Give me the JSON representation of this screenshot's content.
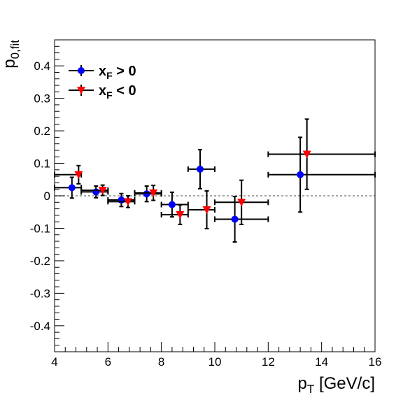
{
  "chart_data": {
    "type": "scatter",
    "title": "",
    "xlabel": "p",
    "xlabel_sub": "T",
    "xlabel_unit": " [GeV/c]",
    "ylabel": "p",
    "ylabel_sub": "0,fit",
    "xlim": [
      4,
      16
    ],
    "ylim": [
      -0.48,
      0.48
    ],
    "x_ticks": [
      4,
      6,
      8,
      10,
      12,
      14,
      16
    ],
    "x_tick_labels": [
      "4",
      "6",
      "8",
      "10",
      "12",
      "14",
      "16"
    ],
    "y_ticks": [
      0.4,
      0.3,
      0.2,
      0.1,
      0,
      -0.1,
      -0.2,
      -0.3,
      -0.4
    ],
    "y_tick_labels": [
      "0.4",
      "0.3",
      "0.2",
      "0.1",
      "0",
      "-0.1",
      "-0.2",
      "-0.3",
      "-0.4"
    ],
    "zero_line": true,
    "grid": false,
    "legend_position": "top-left",
    "series": [
      {
        "name": "x",
        "name_sub": "F",
        "name_suffix": " > 0",
        "marker": "circle",
        "color": "#0000ff",
        "points": [
          {
            "x": 4.65,
            "y": 0.025,
            "xerr": [
              0.65,
              0.35
            ],
            "yerr": 0.032
          },
          {
            "x": 5.55,
            "y": 0.012,
            "xerr": [
              0.55,
              0.45
            ],
            "yerr": 0.018
          },
          {
            "x": 6.5,
            "y": -0.013,
            "xerr": [
              0.5,
              0.5
            ],
            "yerr": 0.02
          },
          {
            "x": 7.45,
            "y": 0.006,
            "xerr": [
              0.45,
              0.55
            ],
            "yerr": 0.024
          },
          {
            "x": 8.4,
            "y": -0.027,
            "xerr": [
              0.4,
              0.6
            ],
            "yerr": 0.038
          },
          {
            "x": 9.45,
            "y": 0.082,
            "xerr": [
              0.45,
              0.55
            ],
            "yerr": 0.06
          },
          {
            "x": 10.75,
            "y": -0.072,
            "xerr": [
              0.75,
              1.25
            ],
            "yerr": 0.07
          },
          {
            "x": 13.2,
            "y": 0.065,
            "xerr": [
              1.2,
              2.8
            ],
            "yerr": 0.115
          }
        ]
      },
      {
        "name": "x",
        "name_sub": "F",
        "name_suffix": " < 0",
        "marker": "triangle-down",
        "color": "#ff0000",
        "points": [
          {
            "x": 4.9,
            "y": 0.065,
            "xerr": [
              0.9,
              0.1
            ],
            "yerr": 0.028
          },
          {
            "x": 5.8,
            "y": 0.017,
            "xerr": [
              0.8,
              0.2
            ],
            "yerr": 0.016
          },
          {
            "x": 6.75,
            "y": -0.018,
            "xerr": [
              0.75,
              0.25
            ],
            "yerr": 0.018
          },
          {
            "x": 7.7,
            "y": 0.009,
            "xerr": [
              0.7,
              0.3
            ],
            "yerr": 0.023
          },
          {
            "x": 8.7,
            "y": -0.058,
            "xerr": [
              0.7,
              0.3
            ],
            "yerr": 0.03
          },
          {
            "x": 9.7,
            "y": -0.043,
            "xerr": [
              0.7,
              0.3
            ],
            "yerr": 0.058
          },
          {
            "x": 11.0,
            "y": -0.02,
            "xerr": [
              1.0,
              1.0
            ],
            "yerr": 0.068
          },
          {
            "x": 13.45,
            "y": 0.128,
            "xerr": [
              1.45,
              2.55
            ],
            "yerr": 0.108
          }
        ]
      }
    ]
  }
}
